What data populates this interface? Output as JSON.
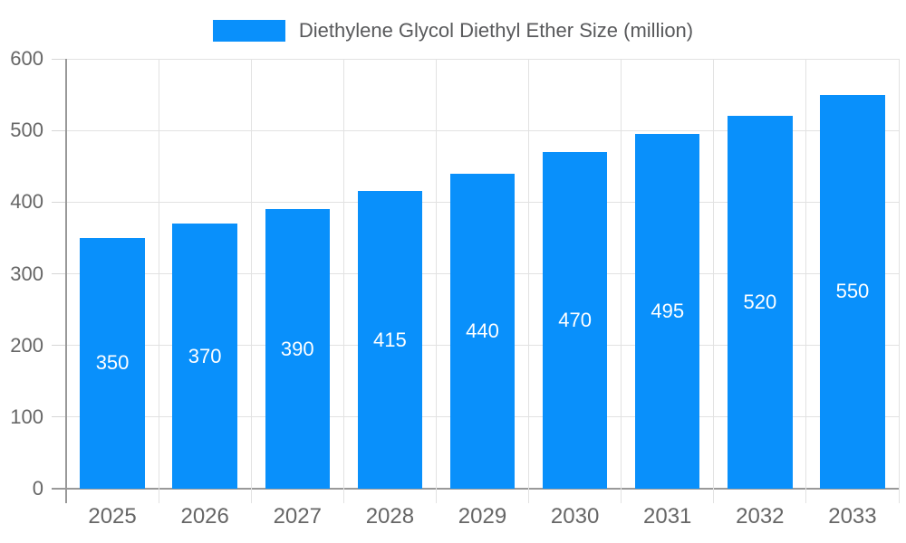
{
  "legend": {
    "label": "Diethylene Glycol Diethyl Ether Size (million)"
  },
  "colors": {
    "bar": "#0990fb",
    "axis_line": "#999999",
    "gridline": "#e2e2e2",
    "tick_mark": "#d6d6d6",
    "axis_text": "#666666",
    "legend_text": "#58595b",
    "value_text": "#ffffff",
    "background": "#ffffff"
  },
  "chart_data": {
    "type": "bar",
    "title": "",
    "series_name": "Diethylene Glycol Diethyl Ether Size (million)",
    "categories": [
      "2025",
      "2026",
      "2027",
      "2028",
      "2029",
      "2030",
      "2031",
      "2032",
      "2033"
    ],
    "values": [
      350,
      370,
      390,
      415,
      440,
      470,
      495,
      520,
      550
    ],
    "xlabel": "",
    "ylabel": "",
    "ylim": [
      0,
      600
    ],
    "yticks": [
      0,
      100,
      200,
      300,
      400,
      500,
      600
    ],
    "grid": true,
    "legend_position": "top",
    "value_label_position": "inside-center"
  }
}
